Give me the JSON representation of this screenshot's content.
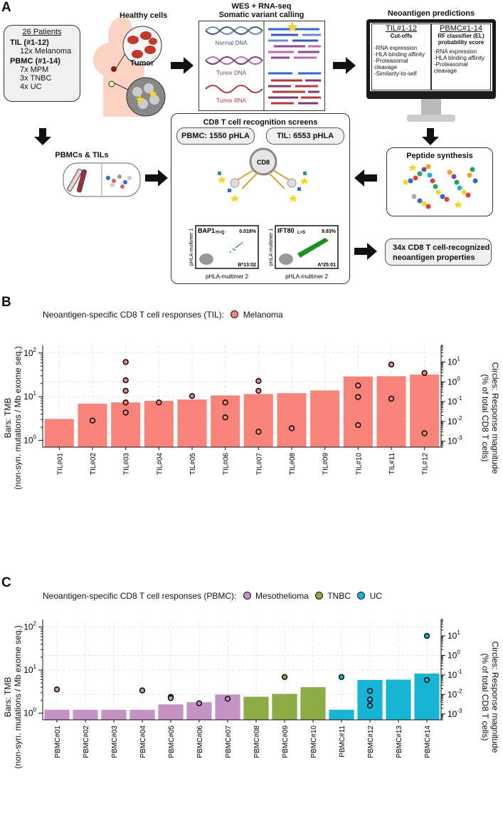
{
  "panel_a": {
    "letter": "A",
    "patients": {
      "title": "26 Patients",
      "til_label": "TIL (#1-12)",
      "til_sub": "12x Melanoma",
      "pbmc_label": "PBMC (#1-14)",
      "pbmc_sub": [
        "7x MPM",
        "3x TNBC",
        "4x UC"
      ]
    },
    "healthy_cells": "Healthy cells",
    "tumor": "Tumor",
    "wes_title_1": "WES + RNA-seq",
    "wes_title_2": "Somatic variant calling",
    "normal_dna": "Normal DNA",
    "tumor_dna": "Tumor DNA",
    "tumor_rna": "Tumor RNA",
    "neo_title": "Neoantigen predictions",
    "til_col": {
      "title": "TIL#1-12",
      "subtitle": "Cut-offs",
      "items": [
        "-RNA expression",
        "-HLA binding affinity",
        "-Proteasomal cleavage",
        "-Similarity-to-self"
      ]
    },
    "pbmc_col": {
      "title": "PBMC#1-14",
      "subtitle_1": "RF classifier (EL)",
      "subtitle_2": "probability score",
      "items": [
        "-RNA expression",
        "-HLA binding affinity",
        "-Proteasomal cleavage"
      ]
    },
    "pbmcs_tils": "PBMCs & TILs",
    "screens_title": "CD8 T cell recognition screens",
    "pbmc_phla": "PBMC: 1550 pHLA",
    "til_phla": "TIL: 6553 pHLA",
    "cd8": "CD8",
    "peptide_synthesis": "Peptide synthesis",
    "flow1": {
      "gene": "BAP1",
      "mut": "H>Q",
      "pct": "0.018%",
      "hla": "B*13:02"
    },
    "flow2": {
      "gene": "IFT80",
      "mut": "L>S",
      "pct": "9.83%",
      "hla": "A*25:01"
    },
    "flow_xlabel": "pHLA-multimer 2",
    "flow_ylabel": "pHLA-multimer 1",
    "result_1": "34x CD8 T cell-recognized",
    "result_2": "neoantigen properties"
  },
  "panel_b": {
    "letter": "B",
    "legend_title": "Neoantigen-specific CD8 T cell responses (TIL):",
    "legend_item": "Melanoma",
    "ylabel_left_1": "Bars: TMB",
    "ylabel_left_2": "(non-syn. mutations / Mb exome seq.)",
    "ylabel_right_1": "Circles: Response magnitude",
    "ylabel_right_2": "(% of total CD8 T cells)"
  },
  "panel_c": {
    "letter": "C",
    "legend_title": "Neoantigen-specific CD8 T cell responses (PBMC):",
    "legend_items": [
      "Mesothelioma",
      "TNBC",
      "UC"
    ],
    "ylabel_left_1": "Bars: TMB",
    "ylabel_left_2": "(non-syn. mutations / Mb exome seq.)",
    "ylabel_right_1": "Circles: Response magnitude",
    "ylabel_right_2": "(% of total CD8 T cells)"
  },
  "colors": {
    "melanoma": "#f8837a",
    "mesothelioma": "#c594c5",
    "tnbc": "#8aab46",
    "uc": "#19b5d4"
  },
  "chart_data": [
    {
      "type": "bar",
      "title": "Neoantigen-specific CD8 T cell responses (TIL)",
      "yscale": "log",
      "ylim": [
        0.7,
        150
      ],
      "y2lim": [
        0.0005,
        70
      ],
      "yticks": [
        "10^0",
        "10^1",
        "10^2"
      ],
      "y2ticks": [
        "10^-3",
        "10^-2",
        "10^-1",
        "10^0",
        "10^1"
      ],
      "categories": [
        "TIL#01",
        "TIL#02",
        "TIL#03",
        "TIL#04",
        "TIL#05",
        "TIL#06",
        "TIL#07",
        "TIL#08",
        "TIL#09",
        "TIL#10",
        "TIL#11",
        "TIL#12"
      ],
      "groups": [
        "melanoma",
        "melanoma",
        "melanoma",
        "melanoma",
        "melanoma",
        "melanoma",
        "melanoma",
        "melanoma",
        "melanoma",
        "melanoma",
        "melanoma",
        "melanoma"
      ],
      "values": [
        3.1,
        6.9,
        7.4,
        8.0,
        8.6,
        10.7,
        11.5,
        12.0,
        13.9,
        29.0,
        29.5,
        32.0
      ],
      "responses": [
        [],
        [
          0.011
        ],
        [
          10.0,
          1.2,
          0.35,
          0.09,
          0.028
        ],
        [
          0.09
        ],
        [
          0.19
        ],
        [
          0.09,
          0.016
        ],
        [
          1.1,
          0.35,
          0.003
        ],
        [
          0.0045
        ],
        [],
        [
          0.65,
          0.17,
          0.0065
        ],
        [
          7.5,
          0.14
        ],
        [
          2.8,
          0.0025
        ]
      ]
    },
    {
      "type": "bar",
      "title": "Neoantigen-specific CD8 T cell responses (PBMC)",
      "yscale": "log",
      "ylim": [
        0.7,
        150
      ],
      "y2lim": [
        0.0005,
        70
      ],
      "yticks": [
        "10^0",
        "10^1",
        "10^2"
      ],
      "y2ticks": [
        "10^-3",
        "10^-2",
        "10^-1",
        "10^0",
        "10^1"
      ],
      "categories": [
        "PBMC#01",
        "PBMC#02",
        "PBMC#03",
        "PBMC#04",
        "PBMC#05",
        "PBMC#06",
        "PBMC#07",
        "PBMC#08",
        "PBMC#09",
        "PBMC#10",
        "PBMC#11",
        "PBMC#12",
        "PBMC#13",
        "PBMC#14"
      ],
      "groups": [
        "mesothelioma",
        "mesothelioma",
        "mesothelioma",
        "mesothelioma",
        "mesothelioma",
        "mesothelioma",
        "mesothelioma",
        "tnbc",
        "tnbc",
        "tnbc",
        "uc",
        "uc",
        "uc",
        "uc"
      ],
      "values": [
        1.2,
        1.2,
        1.2,
        1.2,
        1.6,
        1.8,
        2.7,
        2.4,
        2.8,
        4.0,
        1.2,
        5.9,
        6.0,
        8.3
      ],
      "responses": [
        [
          0.018
        ],
        [],
        [],
        [
          0.016
        ],
        [
          0.0075,
          0.0065
        ],
        [
          0.0035
        ],
        [
          0.006
        ],
        [],
        [
          0.078
        ],
        [],
        [
          0.078
        ],
        [
          0.015,
          0.0055,
          0.0027
        ],
        [],
        [
          10.0,
          0.055
        ]
      ]
    }
  ]
}
